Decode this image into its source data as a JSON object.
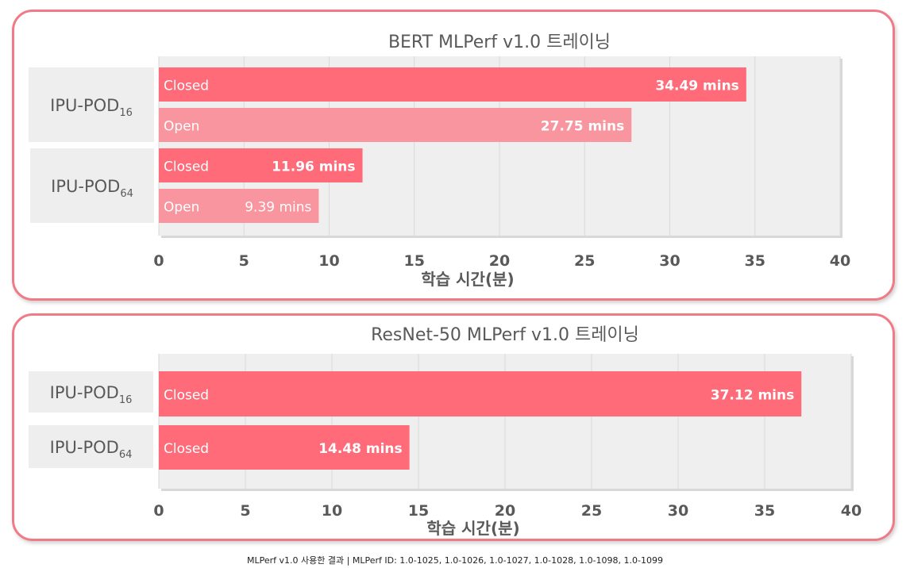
{
  "chart_data": [
    {
      "type": "bar",
      "orientation": "horizontal",
      "title": "BERT MLPerf v1.0 트레이닝",
      "xlabel": "학습 시간(분)",
      "xlim": [
        0,
        40
      ],
      "xticks": [
        "0",
        "5",
        "10",
        "15",
        "20",
        "25",
        "30",
        "35",
        "40"
      ],
      "grid": true,
      "groups": [
        {
          "label_main": "IPU-POD",
          "label_sub": "16",
          "bars": [
            {
              "name": "Closed",
              "value": 34.49,
              "value_label": "34.49 mins"
            },
            {
              "name": "Open",
              "value": 27.75,
              "value_label": "27.75 mins"
            }
          ]
        },
        {
          "label_main": "IPU-POD",
          "label_sub": "64",
          "bars": [
            {
              "name": "Closed",
              "value": 11.96,
              "value_label": "11.96 mins"
            },
            {
              "name": "Open",
              "value": 9.39,
              "value_label": "9.39 mins"
            }
          ]
        }
      ]
    },
    {
      "type": "bar",
      "orientation": "horizontal",
      "title": "ResNet-50 MLPerf v1.0 트레이닝",
      "xlabel": "학습 시간(분)",
      "xlim": [
        0,
        40
      ],
      "xticks": [
        "0",
        "5",
        "10",
        "15",
        "20",
        "25",
        "30",
        "35",
        "40"
      ],
      "grid": true,
      "groups": [
        {
          "label_main": "IPU-POD",
          "label_sub": "16",
          "bars": [
            {
              "name": "Closed",
              "value": 37.12,
              "value_label": "37.12 mins"
            }
          ]
        },
        {
          "label_main": "IPU-POD",
          "label_sub": "64",
          "bars": [
            {
              "name": "Closed",
              "value": 14.48,
              "value_label": "14.48 mins"
            }
          ]
        }
      ]
    }
  ],
  "colors": {
    "closed": "#ff6b78",
    "open": "#f9959e",
    "panel_border": "#f07a86",
    "plot_bg": "#efefef",
    "category_bg": "#eeeeee",
    "text": "#595959"
  },
  "footnote": "MLPerf v1.0 사용한 결과 | MLPerf ID: 1.0-1025, 1.0-1026, 1.0-1027, 1.0-1028, 1.0-1098, 1.0-1099"
}
